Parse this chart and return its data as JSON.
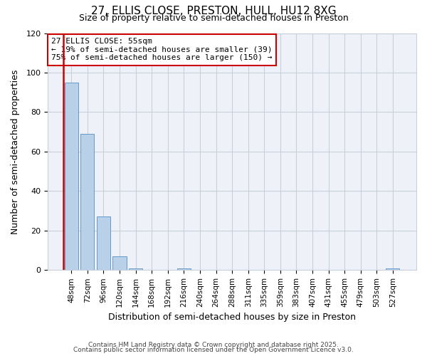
{
  "title": "27, ELLIS CLOSE, PRESTON, HULL, HU12 8XG",
  "subtitle": "Size of property relative to semi-detached houses in Preston",
  "xlabel": "Distribution of semi-detached houses by size in Preston",
  "ylabel": "Number of semi-detached properties",
  "categories": [
    "48sqm",
    "72sqm",
    "96sqm",
    "120sqm",
    "144sqm",
    "168sqm",
    "192sqm",
    "216sqm",
    "240sqm",
    "264sqm",
    "288sqm",
    "311sqm",
    "335sqm",
    "359sqm",
    "383sqm",
    "407sqm",
    "431sqm",
    "455sqm",
    "479sqm",
    "503sqm",
    "527sqm"
  ],
  "values": [
    95,
    69,
    27,
    7,
    1,
    0,
    0,
    1,
    0,
    0,
    0,
    0,
    0,
    0,
    0,
    0,
    0,
    0,
    0,
    0,
    1
  ],
  "bar_color": "#b8d0e8",
  "bar_edge_color": "#6699cc",
  "redline_x": -0.5,
  "annotation_title": "27 ELLIS CLOSE: 55sqm",
  "annotation_line1": "← 19% of semi-detached houses are smaller (39)",
  "annotation_line2": "75% of semi-detached houses are larger (150) →",
  "annotation_box_color": "#ffffff",
  "annotation_border_color": "#cc0000",
  "redline_color": "#cc0000",
  "ylim": [
    0,
    120
  ],
  "yticks": [
    0,
    20,
    40,
    60,
    80,
    100,
    120
  ],
  "background_color": "#eef2f8",
  "grid_color": "#c8d0dc",
  "footer1": "Contains HM Land Registry data © Crown copyright and database right 2025.",
  "footer2": "Contains public sector information licensed under the Open Government Licence v3.0."
}
